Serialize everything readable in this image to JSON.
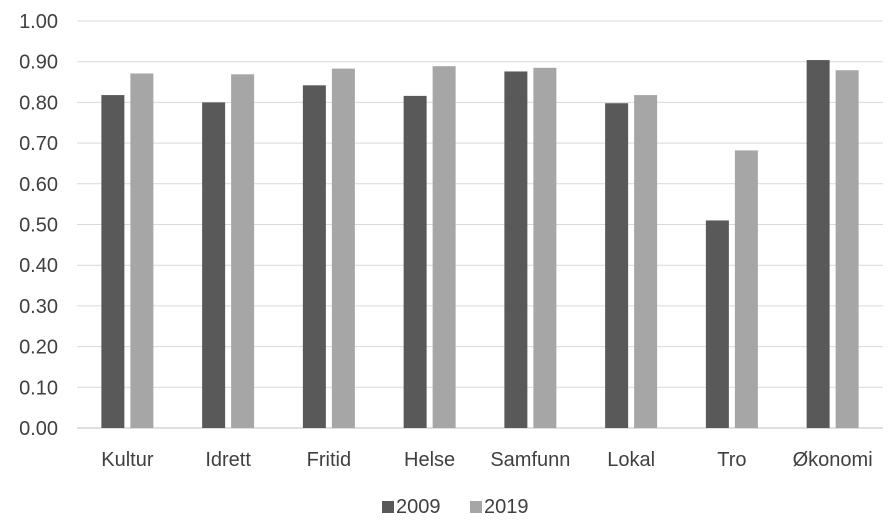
{
  "chart_data": {
    "type": "bar",
    "categories": [
      "Kultur",
      "Idrett",
      "Fritid",
      "Helse",
      "Samfunn",
      "Lokal",
      "Tro",
      "Økonomi"
    ],
    "series": [
      {
        "name": "2009",
        "color": "#595959",
        "values": [
          0.818,
          0.8,
          0.842,
          0.816,
          0.876,
          0.798,
          0.51,
          0.904
        ]
      },
      {
        "name": "2019",
        "color": "#a6a6a6",
        "values": [
          0.871,
          0.869,
          0.883,
          0.889,
          0.885,
          0.818,
          0.682,
          0.879
        ]
      }
    ],
    "y_ticks": [
      "0.00",
      "0.10",
      "0.20",
      "0.30",
      "0.40",
      "0.50",
      "0.60",
      "0.70",
      "0.80",
      "0.90",
      "1.00"
    ],
    "ylim": [
      0,
      1.0
    ],
    "grid": true,
    "legend_position": "bottom"
  }
}
